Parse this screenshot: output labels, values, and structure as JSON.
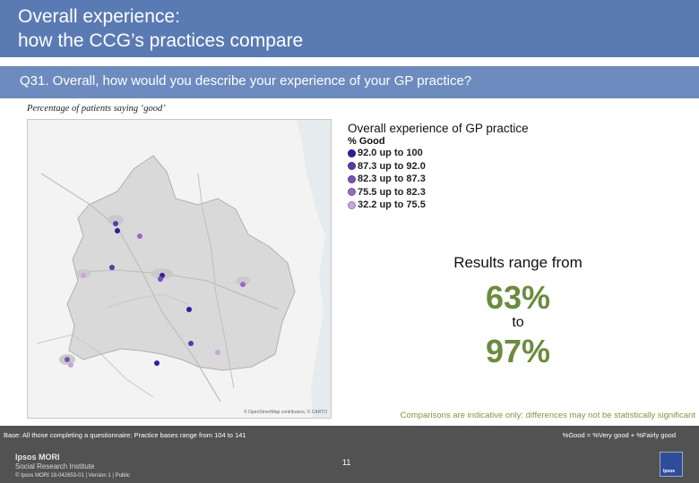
{
  "header": {
    "title_line1": "Overall experience:",
    "title_line2": "how the CCG’s practices compare"
  },
  "question": "Q31. Overall, how would you describe your experience of your GP practice?",
  "subtitle": "Percentage of patients saying ‘good’",
  "legend": {
    "title": "Overall experience of GP practice",
    "subtitle": "% Good",
    "items": [
      {
        "label": "92.0 up to 100",
        "color": "#3a1a9a"
      },
      {
        "label": "87.3 up to 92.0",
        "color": "#5a3aaa"
      },
      {
        "label": "82.3 up to 87.3",
        "color": "#7a50bb"
      },
      {
        "label": "75.5 up to 82.3",
        "color": "#9a68cc"
      },
      {
        "label": "32.2 up to 75.5",
        "color": "#c9a6dd"
      }
    ]
  },
  "results": {
    "label": "Results range from",
    "low": "63%",
    "to": "to",
    "high": "97%"
  },
  "comparisons_note": "Comparisons are indicative only: differences may not be statistically significant",
  "base_text": "Base: All those completing a questionnaire: Practice bases range from 104 to 141",
  "good_definition": "%Good = %Very good + %Fairly good",
  "footer": {
    "brand": "Ipsos MORI",
    "brand_sub": "Social Research Institute",
    "copyright": "© Ipsos MORI     18-042653-01 | Version 1 | Public",
    "page_number": "11",
    "logo_text": "Ipsos"
  },
  "map": {
    "credit": "© OpenStreetMap contributors, © CARTO"
  }
}
